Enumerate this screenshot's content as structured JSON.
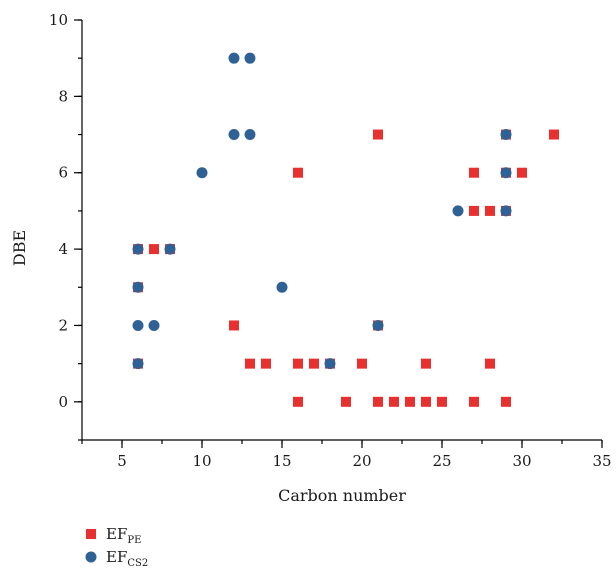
{
  "chart_data": {
    "type": "scatter",
    "title": "",
    "xlabel": "Carbon number",
    "ylabel": "DBE",
    "xlim": [
      2.5,
      35
    ],
    "ylim": [
      -1,
      10
    ],
    "xticks": [
      5,
      10,
      15,
      20,
      25,
      30,
      35
    ],
    "yticks": [
      0,
      2,
      4,
      6,
      8,
      10
    ],
    "x_minor_step": 2.5,
    "y_minor_step": 1,
    "grid": false,
    "legend_position": "bottom-left",
    "series": [
      {
        "name": "EF_PE",
        "label_main": "EF",
        "label_sub": "PE",
        "marker": "square",
        "color": "#e8312e",
        "points": [
          [
            6,
            1
          ],
          [
            6,
            3
          ],
          [
            6,
            4
          ],
          [
            7,
            4
          ],
          [
            8,
            4
          ],
          [
            12,
            2
          ],
          [
            13,
            1
          ],
          [
            14,
            1
          ],
          [
            16,
            0
          ],
          [
            16,
            1
          ],
          [
            16,
            6
          ],
          [
            17,
            1
          ],
          [
            18,
            1
          ],
          [
            19,
            0
          ],
          [
            20,
            1
          ],
          [
            21,
            0
          ],
          [
            21,
            2
          ],
          [
            21,
            7
          ],
          [
            22,
            0
          ],
          [
            23,
            0
          ],
          [
            24,
            0
          ],
          [
            24,
            1
          ],
          [
            25,
            0
          ],
          [
            27,
            0
          ],
          [
            27,
            5
          ],
          [
            27,
            6
          ],
          [
            28,
            1
          ],
          [
            28,
            5
          ],
          [
            29,
            0
          ],
          [
            29,
            5
          ],
          [
            29,
            6
          ],
          [
            29,
            7
          ],
          [
            30,
            6
          ],
          [
            32,
            7
          ]
        ]
      },
      {
        "name": "EF_CS2",
        "label_main": "EF",
        "label_sub": "CS2",
        "marker": "circle",
        "color": "#2f6195",
        "points": [
          [
            6,
            1
          ],
          [
            6,
            2
          ],
          [
            6,
            3
          ],
          [
            6,
            4
          ],
          [
            7,
            2
          ],
          [
            8,
            4
          ],
          [
            10,
            6
          ],
          [
            12,
            7
          ],
          [
            12,
            9
          ],
          [
            13,
            7
          ],
          [
            13,
            9
          ],
          [
            15,
            3
          ],
          [
            18,
            1
          ],
          [
            21,
            2
          ],
          [
            26,
            5
          ],
          [
            29,
            5
          ],
          [
            29,
            6
          ],
          [
            29,
            7
          ]
        ]
      }
    ]
  }
}
